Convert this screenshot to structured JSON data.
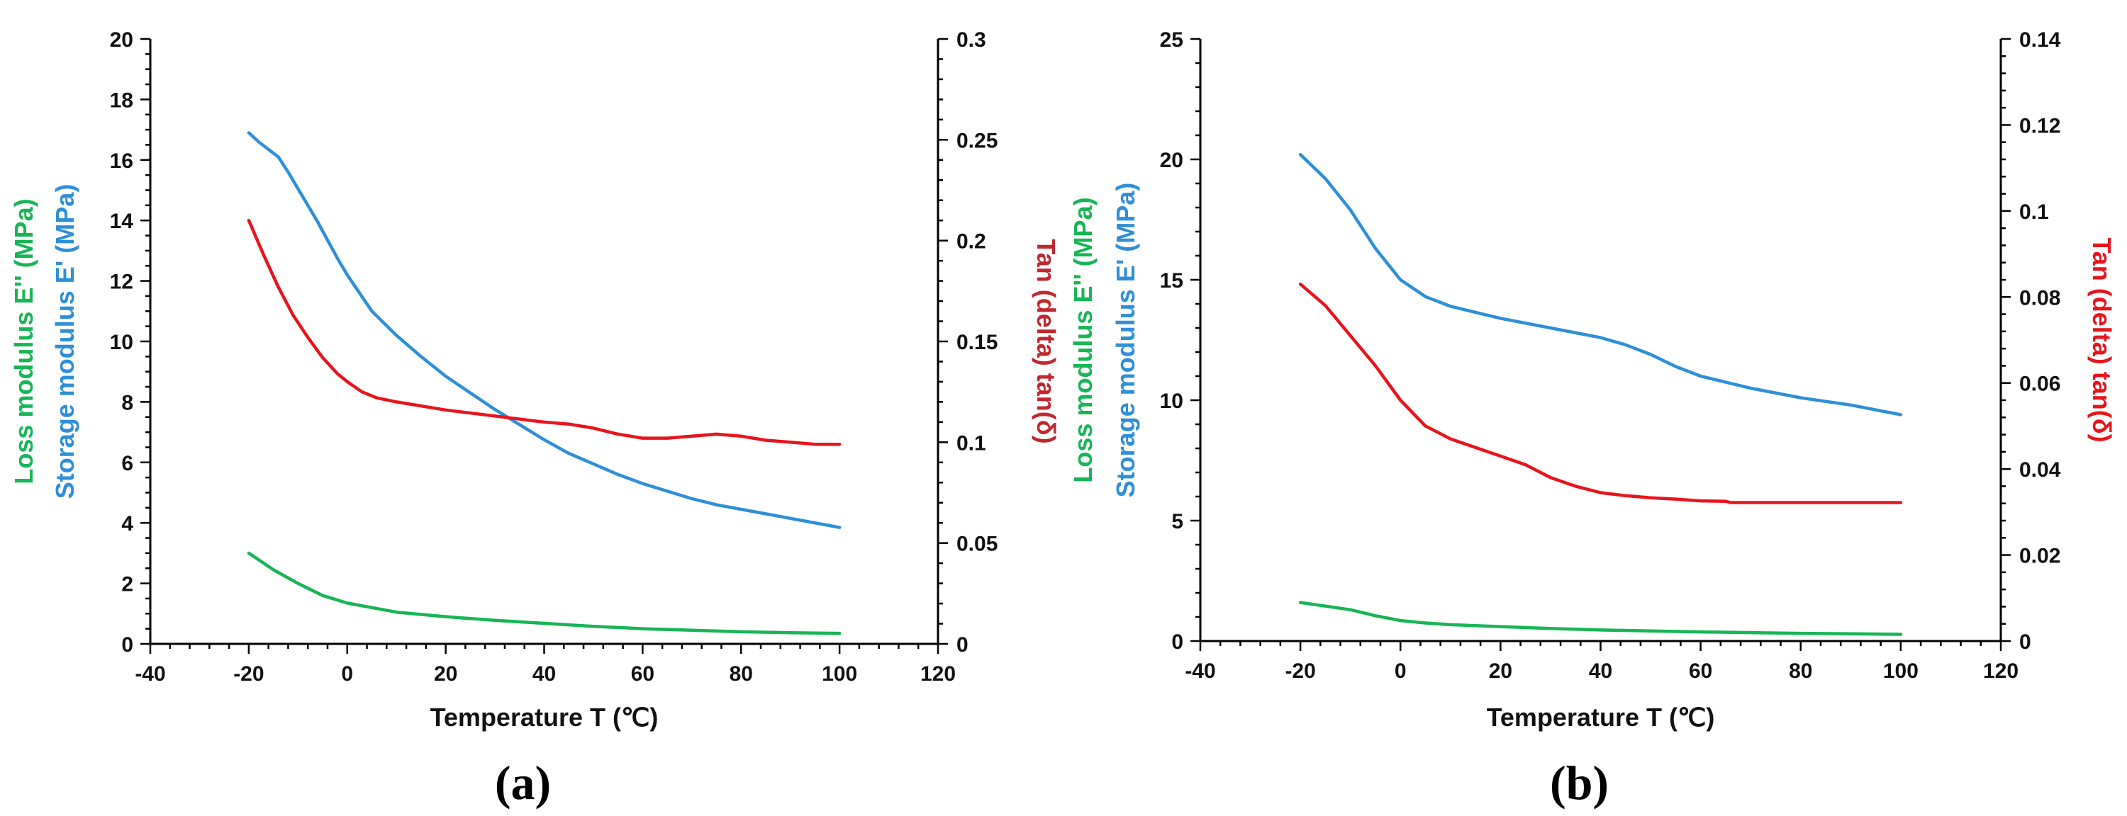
{
  "colors": {
    "storage": "#2e8fd8",
    "loss": "#17b555",
    "tan": "#e8141c",
    "tan_axis_label": "#c0282f",
    "axis": "#000000"
  },
  "chart_data": [
    {
      "type": "line",
      "panel_label": "(a)",
      "xlabel": "Temperature  T  (℃)",
      "ylabel_left_loss": "Loss  modulus  E'' (MPa)",
      "ylabel_left_storage": "Storage  modulus  E' (MPa)",
      "ylabel_right": "Tan (delta) tan(δ)",
      "xlim": [
        -40,
        120
      ],
      "x_ticks": [
        -40,
        -20,
        0,
        20,
        40,
        60,
        80,
        100,
        120
      ],
      "x_tick_labels": [
        "-40",
        "-20",
        "0",
        "20",
        "40",
        "60",
        "80",
        "100",
        "120"
      ],
      "ylim_left": [
        0,
        20
      ],
      "y_left_ticks": [
        0,
        2,
        4,
        6,
        8,
        10,
        12,
        14,
        16,
        18,
        20
      ],
      "y_left_tick_labels": [
        "0",
        "2",
        "4",
        "6",
        "8",
        "10",
        "12",
        "14",
        "16",
        "18",
        "20"
      ],
      "ylim_right": [
        0,
        0.3
      ],
      "y_right_ticks": [
        0,
        0.05,
        0.1,
        0.15,
        0.2,
        0.25,
        0.3
      ],
      "y_right_tick_labels": [
        "0",
        "0.05",
        "0.1",
        "0.15",
        "0.2",
        "0.25",
        "0.3"
      ],
      "series": [
        {
          "name": "Storage modulus E'",
          "axis": "left",
          "color_key": "storage",
          "x": [
            -20,
            -18,
            -16,
            -14,
            -12,
            -10,
            -8,
            -6,
            -4,
            -2,
            0,
            5,
            10,
            15,
            20,
            25,
            30,
            35,
            40,
            45,
            50,
            55,
            60,
            65,
            70,
            75,
            80,
            85,
            90,
            95,
            100
          ],
          "values": [
            16.9,
            16.6,
            16.35,
            16.1,
            15.6,
            15.05,
            14.5,
            13.95,
            13.35,
            12.75,
            12.2,
            11.0,
            10.2,
            9.5,
            8.85,
            8.3,
            7.75,
            7.25,
            6.75,
            6.3,
            5.95,
            5.6,
            5.3,
            5.05,
            4.8,
            4.6,
            4.45,
            4.3,
            4.15,
            4.0,
            3.85
          ]
        },
        {
          "name": "Loss modulus E''",
          "axis": "left",
          "color_key": "loss",
          "x": [
            -20,
            -15,
            -10,
            -5,
            0,
            5,
            10,
            20,
            30,
            40,
            50,
            60,
            70,
            80,
            90,
            100
          ],
          "values": [
            3.0,
            2.45,
            2.0,
            1.6,
            1.35,
            1.2,
            1.05,
            0.9,
            0.78,
            0.68,
            0.58,
            0.5,
            0.45,
            0.4,
            0.37,
            0.35
          ]
        },
        {
          "name": "Tan (delta)",
          "axis": "right",
          "color_key": "tan",
          "x": [
            -20,
            -17,
            -14,
            -11,
            -8,
            -5,
            -2,
            0,
            3,
            6,
            10,
            20,
            30,
            40,
            45,
            50,
            55,
            60,
            65,
            70,
            75,
            80,
            85,
            90,
            95,
            100
          ],
          "values": [
            0.21,
            0.193,
            0.177,
            0.163,
            0.152,
            0.142,
            0.134,
            0.13,
            0.125,
            0.122,
            0.12,
            0.116,
            0.113,
            0.11,
            0.109,
            0.107,
            0.104,
            0.102,
            0.102,
            0.103,
            0.104,
            0.103,
            0.101,
            0.1,
            0.099,
            0.099
          ]
        }
      ]
    },
    {
      "type": "line",
      "panel_label": "(b)",
      "xlabel": "Temperature  T  (℃)",
      "ylabel_left_loss": "Loss  modulus  E'' (MPa)",
      "ylabel_left_storage": "Storage  modulus  E' (MPa)",
      "ylabel_right": "Tan (delta) tan(δ)",
      "xlim": [
        -40,
        120
      ],
      "x_ticks": [
        -40,
        -20,
        0,
        20,
        40,
        60,
        80,
        100,
        120
      ],
      "x_tick_labels": [
        "-40",
        "-20",
        "0",
        "20",
        "40",
        "60",
        "80",
        "100",
        "120"
      ],
      "ylim_left": [
        0,
        25
      ],
      "y_left_ticks": [
        0,
        5,
        10,
        15,
        20,
        25
      ],
      "y_left_tick_labels": [
        "0",
        "5",
        "10",
        "15",
        "20",
        "25"
      ],
      "ylim_right": [
        0,
        0.14
      ],
      "y_right_ticks": [
        0,
        0.02,
        0.04,
        0.06,
        0.08,
        0.1,
        0.12,
        0.14
      ],
      "y_right_tick_labels": [
        "0",
        "0.02",
        "0.04",
        "0.06",
        "0.08",
        "0.1",
        "0.12",
        "0.14"
      ],
      "series": [
        {
          "name": "Storage modulus E'",
          "axis": "left",
          "color_key": "storage",
          "x": [
            -20,
            -15,
            -10,
            -5,
            0,
            5,
            10,
            20,
            30,
            40,
            45,
            50,
            55,
            60,
            70,
            80,
            90,
            100
          ],
          "values": [
            20.2,
            19.2,
            17.9,
            16.3,
            15.0,
            14.3,
            13.9,
            13.4,
            13.0,
            12.6,
            12.3,
            11.9,
            11.4,
            11.0,
            10.5,
            10.1,
            9.8,
            9.4
          ]
        },
        {
          "name": "Loss modulus E''",
          "axis": "left",
          "color_key": "loss",
          "x": [
            -20,
            -15,
            -10,
            -5,
            0,
            5,
            10,
            20,
            30,
            40,
            50,
            60,
            70,
            80,
            90,
            100
          ],
          "values": [
            1.6,
            1.45,
            1.3,
            1.05,
            0.85,
            0.75,
            0.68,
            0.6,
            0.52,
            0.46,
            0.42,
            0.38,
            0.35,
            0.32,
            0.3,
            0.28
          ]
        },
        {
          "name": "Tan (delta)",
          "axis": "right",
          "color_key": "tan",
          "x": [
            -20,
            -15,
            -10,
            -5,
            0,
            5,
            10,
            15,
            20,
            25,
            30,
            35,
            40,
            45,
            50,
            55,
            60,
            65,
            66,
            70,
            80,
            90,
            100
          ],
          "values": [
            0.083,
            0.078,
            0.071,
            0.064,
            0.056,
            0.05,
            0.047,
            0.045,
            0.043,
            0.041,
            0.038,
            0.036,
            0.0345,
            0.0338,
            0.0333,
            0.033,
            0.0326,
            0.0325,
            0.0322,
            0.0322,
            0.0322,
            0.0322,
            0.0322
          ]
        }
      ]
    }
  ]
}
